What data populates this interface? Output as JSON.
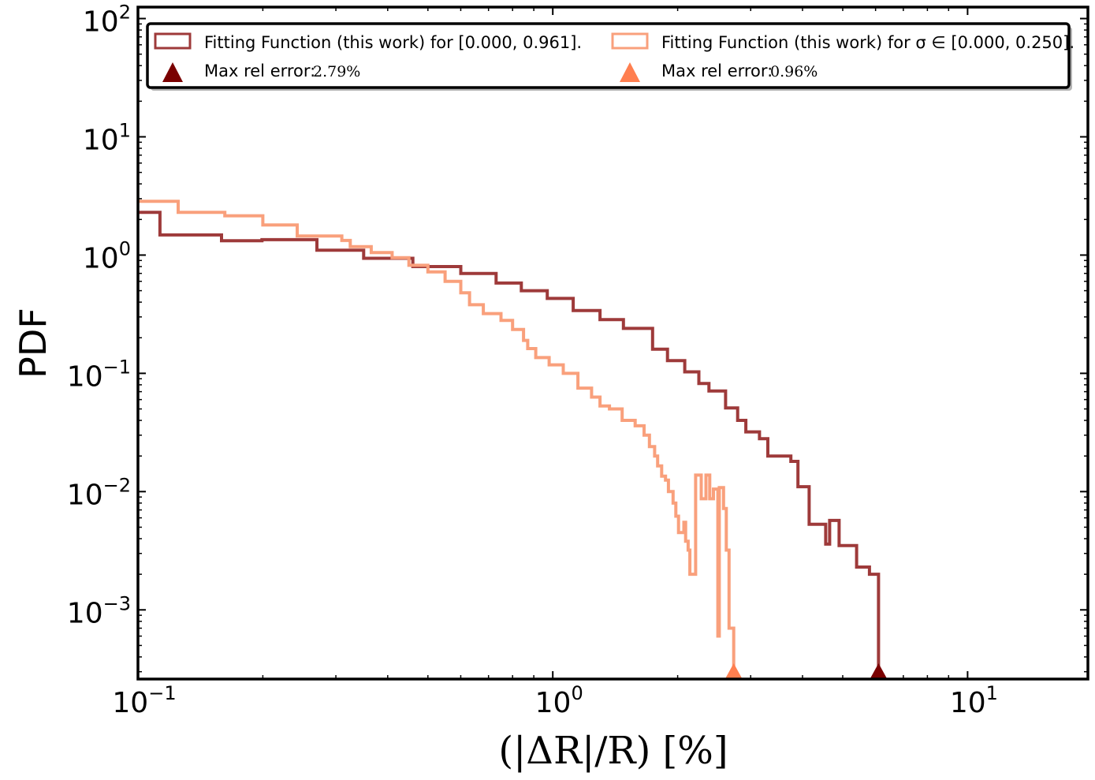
{
  "chart_data": {
    "type": "histogram-step",
    "xscale": "log",
    "yscale": "log",
    "xlim": [
      0.1,
      19.5
    ],
    "ylim": [
      0.00026,
      125
    ],
    "ylabel": "PDF",
    "xlabel": "(|ΔR|/R) [%]",
    "x_ticks": [
      {
        "value": 0.1,
        "base": "10",
        "exp": "−1"
      },
      {
        "value": 1,
        "base": "10",
        "exp": "0"
      },
      {
        "value": 10,
        "base": "10",
        "exp": "1"
      }
    ],
    "y_ticks": [
      {
        "value": 0.001,
        "base": "10",
        "exp": "−3"
      },
      {
        "value": 0.01,
        "base": "10",
        "exp": "−2"
      },
      {
        "value": 0.1,
        "base": "10",
        "exp": "−1"
      },
      {
        "value": 1,
        "base": "10",
        "exp": "0"
      },
      {
        "value": 10,
        "base": "10",
        "exp": "1"
      },
      {
        "value": 100,
        "base": "10",
        "exp": "2"
      }
    ],
    "legend_position": "top (two columns)",
    "series": [
      {
        "name": "Fitting Function (this work) for [0.000, 0.961].",
        "color": "#9e3a3a",
        "steps": [
          [
            0.1,
            2.3
          ],
          [
            0.113,
            1.48
          ],
          [
            0.159,
            1.32
          ],
          [
            0.199,
            1.35
          ],
          [
            0.27,
            1.1
          ],
          [
            0.35,
            0.94
          ],
          [
            0.46,
            0.8
          ],
          [
            0.6,
            0.7
          ],
          [
            0.73,
            0.58
          ],
          [
            0.84,
            0.5
          ],
          [
            0.97,
            0.43
          ],
          [
            1.12,
            0.34
          ],
          [
            1.3,
            0.285
          ],
          [
            1.48,
            0.24
          ],
          [
            1.74,
            0.16
          ],
          [
            1.89,
            0.128
          ],
          [
            2.08,
            0.103
          ],
          [
            2.25,
            0.082
          ],
          [
            2.38,
            0.071
          ],
          [
            2.61,
            0.051
          ],
          [
            2.79,
            0.04
          ],
          [
            2.92,
            0.032
          ],
          [
            3.15,
            0.028
          ],
          [
            3.3,
            0.02
          ],
          [
            3.75,
            0.018
          ],
          [
            3.9,
            0.011
          ],
          [
            4.15,
            0.0053
          ],
          [
            4.55,
            0.0036
          ],
          [
            4.65,
            0.0057
          ],
          [
            4.9,
            0.0035
          ],
          [
            5.4,
            0.0023
          ],
          [
            5.8,
            0.002
          ],
          [
            6.1,
            0.00026
          ]
        ],
        "max_rel_error_label": "Max rel error:",
        "max_rel_error_value": "2.79%",
        "marker_x": 6.1,
        "marker_color": "#7a0000"
      },
      {
        "name": "Fitting Function (this work) for σ ∈ [0.000, 0.250].",
        "color": "#f9a07c",
        "steps": [
          [
            0.1,
            2.85
          ],
          [
            0.105,
            2.85
          ],
          [
            0.125,
            2.3
          ],
          [
            0.162,
            2.15
          ],
          [
            0.2,
            1.8
          ],
          [
            0.242,
            1.45
          ],
          [
            0.31,
            1.33
          ],
          [
            0.325,
            1.18
          ],
          [
            0.365,
            1.05
          ],
          [
            0.41,
            0.95
          ],
          [
            0.45,
            0.82
          ],
          [
            0.5,
            0.72
          ],
          [
            0.55,
            0.6
          ],
          [
            0.6,
            0.48
          ],
          [
            0.63,
            0.38
          ],
          [
            0.68,
            0.32
          ],
          [
            0.75,
            0.28
          ],
          [
            0.8,
            0.235
          ],
          [
            0.85,
            0.19
          ],
          [
            0.87,
            0.162
          ],
          [
            0.91,
            0.136
          ],
          [
            0.98,
            0.118
          ],
          [
            1.06,
            0.1
          ],
          [
            1.15,
            0.075
          ],
          [
            1.24,
            0.063
          ],
          [
            1.3,
            0.053
          ],
          [
            1.37,
            0.05
          ],
          [
            1.47,
            0.04
          ],
          [
            1.58,
            0.036
          ],
          [
            1.66,
            0.03
          ],
          [
            1.71,
            0.024
          ],
          [
            1.76,
            0.02
          ],
          [
            1.79,
            0.0165
          ],
          [
            1.83,
            0.0135
          ],
          [
            1.87,
            0.0125
          ],
          [
            1.9,
            0.01
          ],
          [
            1.95,
            0.008
          ],
          [
            1.98,
            0.0062
          ],
          [
            2.01,
            0.0045
          ],
          [
            2.07,
            0.0055
          ],
          [
            2.09,
            0.0038
          ],
          [
            2.12,
            0.0032
          ],
          [
            2.14,
            0.002
          ],
          [
            2.21,
            0.0138
          ],
          [
            2.28,
            0.0087
          ],
          [
            2.34,
            0.0138
          ],
          [
            2.39,
            0.0087
          ],
          [
            2.44,
            0.0105
          ],
          [
            2.5,
            0.0006
          ],
          [
            2.52,
            0.0108
          ],
          [
            2.58,
            0.0072
          ],
          [
            2.62,
            0.0032
          ],
          [
            2.66,
            0.0007
          ],
          [
            2.73,
            0.00026
          ]
        ],
        "max_rel_error_label": "Max rel error:",
        "max_rel_error_value": "0.96%",
        "marker_x": 2.73,
        "marker_color": "#ff7f50"
      }
    ]
  }
}
